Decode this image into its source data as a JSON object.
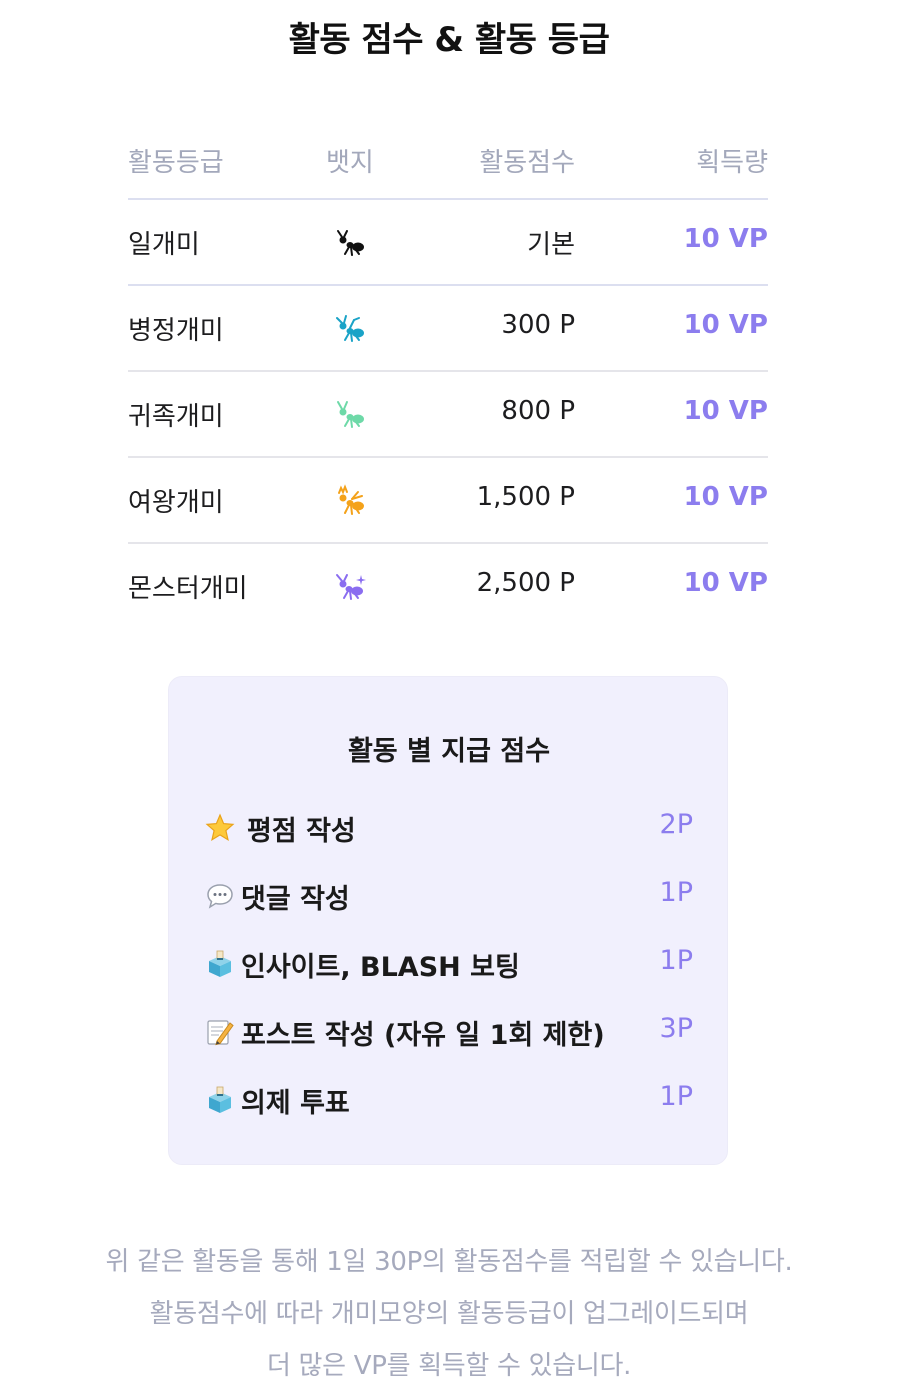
{
  "title": "활동 점수 & 활동 등급",
  "table": {
    "headers": {
      "grade": "활동등급",
      "badge": "뱃지",
      "score": "활동점수",
      "reward": "획득량"
    },
    "rows": [
      {
        "grade": "일개미",
        "badge_icon": "ant-black-icon",
        "badge_color": "#111111",
        "score": "기본",
        "reward": "10 VP"
      },
      {
        "grade": "병정개미",
        "badge_icon": "ant-soldier-icon",
        "badge_color": "#1aa3c7",
        "score": "300 P",
        "reward": "10 VP"
      },
      {
        "grade": "귀족개미",
        "badge_icon": "ant-noble-icon",
        "badge_color": "#6ed9a8",
        "score": "800 P",
        "reward": "10 VP"
      },
      {
        "grade": "여왕개미",
        "badge_icon": "ant-queen-icon",
        "badge_color": "#f4a21a",
        "score": "1,500 P",
        "reward": "10 VP"
      },
      {
        "grade": "몬스터개미",
        "badge_icon": "ant-monster-icon",
        "badge_color": "#8a6df0",
        "score": "2,500 P",
        "reward": "10 VP"
      }
    ]
  },
  "activities": {
    "title": "활동 별 지급 점수",
    "items": [
      {
        "icon": "star-icon",
        "label": "평점 작성",
        "points": "2P"
      },
      {
        "icon": "speech-bubble-icon",
        "label": "댓글 작성",
        "points": "1P"
      },
      {
        "icon": "ballot-box-icon",
        "label": "인사이트, BLASH 보팅",
        "points": "1P"
      },
      {
        "icon": "memo-icon",
        "label": "포스트 작성 (자유 일 1회 제한)",
        "points": "3P"
      },
      {
        "icon": "ballot-box-icon",
        "label": "의제 투표",
        "points": "1P"
      }
    ]
  },
  "footer": {
    "line1": "위 같은 활동을 통해 1일 30P의 활동점수를 적립할 수 있습니다.",
    "line2": "활동점수에 따라 개미모양의 활동등급이 업그레이드되며",
    "line3": "더 많은 VP를 획득할 수 있습니다."
  },
  "colors": {
    "accent": "#8c7dee",
    "card_bg": "#f1f0fd",
    "muted_text": "#a6aabd"
  }
}
